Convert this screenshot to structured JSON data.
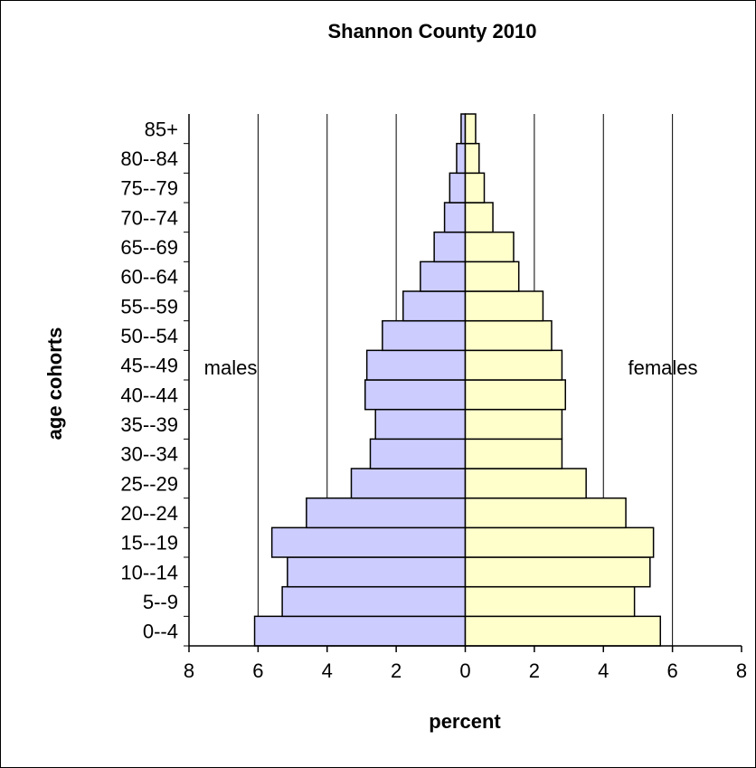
{
  "chart_data": {
    "type": "bar",
    "orientation": "horizontal",
    "title": "Shannon County 2010",
    "xlabel": "percent",
    "ylabel": "age cohorts",
    "xlim": [
      -8,
      8
    ],
    "x_ticks": [
      -8,
      -6,
      -4,
      -2,
      0,
      2,
      4,
      6,
      8
    ],
    "x_tick_labels": [
      "8",
      "6",
      "4",
      "2",
      "0",
      "2",
      "4",
      "6",
      "8"
    ],
    "grid": "vertical",
    "categories": [
      "0--4",
      "5--9",
      "10--14",
      "15--19",
      "20--24",
      "25--29",
      "30--34",
      "35--39",
      "40--44",
      "45--49",
      "50--54",
      "55--59",
      "60--64",
      "65--69",
      "70--74",
      "75--79",
      "80--84",
      "85+"
    ],
    "series": [
      {
        "name": "males",
        "color": "#ccccff",
        "values": [
          6.1,
          5.3,
          5.15,
          5.6,
          4.6,
          3.3,
          2.75,
          2.6,
          2.9,
          2.85,
          2.4,
          1.8,
          1.3,
          0.9,
          0.6,
          0.45,
          0.25,
          0.12
        ]
      },
      {
        "name": "females",
        "color": "#ffffcc",
        "values": [
          5.65,
          4.9,
          5.35,
          5.45,
          4.65,
          3.5,
          2.8,
          2.8,
          2.9,
          2.8,
          2.5,
          2.25,
          1.55,
          1.4,
          0.8,
          0.55,
          0.4,
          0.3
        ]
      }
    ],
    "annotations": [
      "males",
      "females"
    ]
  }
}
